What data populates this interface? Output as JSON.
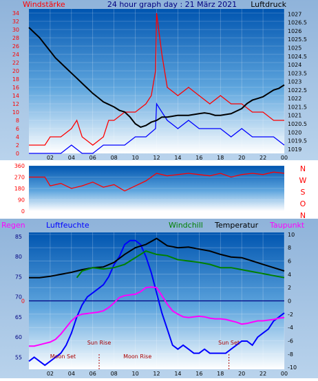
{
  "colors": {
    "red": "#ff0000",
    "blue": "#0000ff",
    "black": "#000000",
    "green": "#008000",
    "magenta": "#ff00ff",
    "navy": "#000080",
    "darkred": "#aa0000"
  },
  "chart_data": [
    {
      "type": "line",
      "title": "24 hour graph day : 21 März 2021",
      "label_left": "Windstärke",
      "label_right": "Luftdruck",
      "x_ticks": [
        "02",
        "04",
        "06",
        "08",
        "10",
        "12",
        "14",
        "16",
        "18",
        "20",
        "22",
        "00"
      ],
      "y_left_ticks": [
        "0",
        "2",
        "4",
        "6",
        "8",
        "10",
        "12",
        "14",
        "16",
        "18",
        "20",
        "22",
        "24",
        "26",
        "28",
        "30",
        "32",
        "34"
      ],
      "y_left_range": [
        0,
        35
      ],
      "y_right_ticks": [
        "1019",
        "1019.5",
        "1020",
        "1020.5",
        "1021",
        "1021.5",
        "1022",
        "1022.5",
        "1023",
        "1023.5",
        "1024",
        "1024.5",
        "1025",
        "1025.5",
        "1026",
        "1026.5",
        "1027"
      ],
      "y_right_range": [
        1018.75,
        1027.3
      ],
      "series": [
        {
          "color": "red",
          "axis": "left",
          "x": [
            0,
            1.5,
            2,
            3,
            4,
            4.5,
            5,
            6,
            7,
            7.5,
            8,
            9,
            10,
            11,
            11.5,
            11.9,
            12,
            12.5,
            13,
            14,
            15,
            16,
            17,
            18,
            19,
            20,
            21,
            22,
            23,
            24
          ],
          "y": [
            2,
            2,
            4,
            4,
            6,
            8,
            4,
            2,
            4,
            8,
            8,
            10,
            10,
            12,
            14,
            20,
            34,
            24,
            16,
            14,
            16,
            14,
            12,
            14,
            12,
            12,
            10,
            10,
            8,
            8
          ]
        },
        {
          "color": "blue",
          "axis": "left",
          "x": [
            0,
            2,
            3,
            4,
            5,
            6,
            7,
            8,
            9,
            10,
            11,
            11.9,
            12,
            12.5,
            13,
            14,
            15,
            16,
            17,
            18,
            19,
            20,
            21,
            22,
            23,
            24
          ],
          "y": [
            0,
            0,
            0,
            2,
            0,
            0,
            2,
            2,
            2,
            4,
            4,
            6,
            12,
            10,
            8,
            6,
            8,
            6,
            6,
            6,
            4,
            6,
            4,
            4,
            4,
            2
          ]
        },
        {
          "color": "black",
          "axis": "right",
          "x": [
            0,
            0.5,
            1,
            1.5,
            2,
            2.5,
            3,
            3.5,
            4,
            4.5,
            5,
            5.5,
            6,
            6.5,
            7,
            7.5,
            8,
            8.5,
            9,
            9.5,
            10,
            10.5,
            11,
            11.5,
            12,
            12.5,
            13,
            13.5,
            14,
            14.5,
            15,
            15.5,
            16,
            16.5,
            17,
            17.5,
            18,
            18.5,
            19,
            19.5,
            20,
            20.5,
            21,
            21.5,
            22,
            22.5,
            23,
            23.5,
            24
          ],
          "y": [
            1026.2,
            1025.9,
            1025.6,
            1025.2,
            1024.8,
            1024.4,
            1024.1,
            1023.8,
            1023.5,
            1023.2,
            1022.9,
            1022.6,
            1022.3,
            1022.05,
            1021.8,
            1021.65,
            1021.5,
            1021.3,
            1021.2,
            1020.9,
            1020.5,
            1020.3,
            1020.4,
            1020.6,
            1020.7,
            1020.9,
            1020.9,
            1020.95,
            1021.0,
            1021.0,
            1021.0,
            1021.05,
            1021.1,
            1021.15,
            1021.1,
            1021.0,
            1021.0,
            1021.05,
            1021.1,
            1021.25,
            1021.4,
            1021.7,
            1021.9,
            1022.0,
            1022.1,
            1022.3,
            1022.5,
            1022.6,
            1022.8
          ]
        }
      ]
    },
    {
      "type": "line",
      "label_right": [
        "N",
        "W",
        "S",
        "O",
        "N"
      ],
      "y_ticks": [
        "0",
        "90",
        "180",
        "270",
        "360"
      ],
      "y_range": [
        0,
        360
      ],
      "series": [
        {
          "color": "red",
          "x": [
            0,
            1.5,
            2,
            3,
            4,
            5,
            6,
            7,
            8,
            9,
            10,
            11,
            12,
            13,
            14,
            15,
            16,
            17,
            18,
            19,
            20,
            21,
            22,
            23,
            24
          ],
          "y": [
            270,
            270,
            200,
            220,
            180,
            200,
            230,
            190,
            210,
            160,
            200,
            240,
            300,
            280,
            290,
            300,
            290,
            280,
            300,
            270,
            290,
            300,
            290,
            310,
            300
          ]
        }
      ]
    },
    {
      "type": "line",
      "labels_top": {
        "rain": "Regen",
        "humidity": "Luftfeuchte",
        "windchill": "Windchill",
        "temperature": "Temperatur",
        "dewpoint": "Taupunkt"
      },
      "y_left_ticks": [
        "55",
        "60",
        "65",
        "70",
        "75",
        "80",
        "85"
      ],
      "y_left_range": [
        52,
        86
      ],
      "y_right_ticks": [
        "10",
        "8",
        "6",
        "4",
        "2",
        "0",
        "-2",
        "-4",
        "-6",
        "-8",
        "-10"
      ],
      "y_right_range": [
        -10.3,
        10.3
      ],
      "zero_line_label": "0",
      "annotations": [
        {
          "text": "Moon Set",
          "x": 3.2,
          "at": "bottom"
        },
        {
          "text": "Sun Rise",
          "x": 6.6,
          "at": "mid"
        },
        {
          "text": "Moon Rise",
          "x": 10.2,
          "at": "bottom"
        },
        {
          "text": "Sun Set",
          "x": 18.8,
          "at": "mid"
        }
      ],
      "markers_x": [
        6.6,
        18.8
      ],
      "series": [
        {
          "color": "blue",
          "axis": "left",
          "x": [
            0,
            0.5,
            1,
            1.5,
            2,
            2.5,
            3,
            3.5,
            4,
            4.5,
            5,
            5.5,
            6,
            6.5,
            7,
            7.5,
            8,
            8.5,
            9,
            9.5,
            10,
            10.5,
            11,
            11.5,
            12,
            12.5,
            13,
            13.5,
            14,
            14.5,
            15,
            15.5,
            16,
            16.5,
            17,
            17.5,
            18,
            18.5,
            19,
            19.5,
            20,
            20.5,
            21,
            21.5,
            22,
            22.5,
            23,
            23.5,
            24
          ],
          "y": [
            54,
            55,
            54,
            53,
            54,
            55,
            56,
            58,
            61,
            65,
            68,
            70,
            71,
            72,
            73,
            75,
            78,
            80,
            83,
            84,
            84,
            83,
            80,
            76,
            71,
            66,
            62,
            58,
            57,
            58,
            57,
            56,
            56,
            57,
            56,
            56,
            56,
            56,
            57,
            58,
            59,
            59,
            58,
            60,
            61,
            62,
            64,
            65,
            66
          ]
        },
        {
          "color": "black",
          "axis": "right",
          "x": [
            0,
            1,
            2,
            3,
            4,
            5,
            6,
            7,
            8,
            9,
            10,
            11,
            12,
            13,
            14,
            15,
            16,
            17,
            18,
            19,
            20,
            21,
            22,
            23,
            24
          ],
          "y": [
            3.5,
            3.5,
            3.7,
            4.0,
            4.3,
            4.7,
            5.0,
            5.1,
            5.8,
            7.0,
            8.0,
            8.5,
            9.4,
            8.3,
            8.0,
            8.1,
            7.8,
            7.5,
            7.0,
            6.6,
            6.5,
            6.0,
            5.5,
            5.0,
            4.5
          ]
        },
        {
          "color": "green",
          "axis": "right",
          "x": [
            4.5,
            5,
            6,
            7,
            8,
            9,
            10,
            11,
            12,
            13,
            14,
            15,
            16,
            17,
            18,
            19,
            20,
            21,
            22,
            23,
            24
          ],
          "y": [
            3.5,
            4.5,
            5.0,
            4.8,
            5.0,
            5.5,
            6.5,
            7.5,
            7.0,
            6.8,
            6.2,
            6.0,
            5.8,
            5.5,
            5.0,
            5.0,
            4.7,
            4.4,
            4.1,
            3.8,
            3.5
          ]
        },
        {
          "color": "magenta",
          "axis": "right",
          "x": [
            0,
            0.5,
            1,
            1.5,
            2,
            2.5,
            3,
            3.5,
            4,
            4.5,
            5,
            5.5,
            6,
            6.5,
            7,
            7.5,
            8,
            8.5,
            9,
            9.5,
            10,
            10.5,
            11,
            11.5,
            12,
            12.5,
            13,
            13.5,
            14,
            14.5,
            15,
            15.5,
            16,
            16.5,
            17,
            17.5,
            18,
            18.5,
            19,
            19.5,
            20,
            20.5,
            21,
            21.5,
            22,
            22.5,
            23,
            23.5,
            24
          ],
          "y": [
            -6.8,
            -6.8,
            -6.6,
            -6.4,
            -6.2,
            -5.8,
            -5.0,
            -4.0,
            -3.0,
            -2.3,
            -2.0,
            -1.9,
            -1.8,
            -1.7,
            -1.5,
            -1.0,
            -0.3,
            0.5,
            0.8,
            0.9,
            1.0,
            1.4,
            2.0,
            2.1,
            2.0,
            0.8,
            -0.5,
            -1.5,
            -2.0,
            -2.4,
            -2.5,
            -2.4,
            -2.3,
            -2.4,
            -2.6,
            -2.7,
            -2.7,
            -2.8,
            -3.0,
            -3.2,
            -3.5,
            -3.4,
            -3.2,
            -3.0,
            -3.0,
            -2.9,
            -2.8,
            -2.6,
            -2.5
          ]
        }
      ]
    }
  ]
}
